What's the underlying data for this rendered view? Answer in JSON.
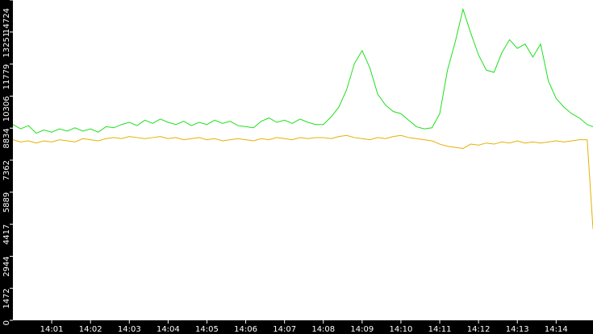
{
  "chart_data": {
    "type": "line",
    "x": [
      840,
      840.2,
      840.4,
      840.6,
      840.8,
      841,
      841.2,
      841.4,
      841.6,
      841.8,
      842,
      842.2,
      842.4,
      842.6,
      842.8,
      843,
      843.2,
      843.4,
      843.6,
      843.8,
      844,
      844.2,
      844.4,
      844.6,
      844.8,
      845,
      845.2,
      845.4,
      845.6,
      845.8,
      846,
      846.2,
      846.4,
      846.6,
      846.8,
      847,
      847.2,
      847.4,
      847.6,
      847.8,
      848,
      848.2,
      848.4,
      848.6,
      848.8,
      849,
      849.2,
      849.4,
      849.6,
      849.8,
      850,
      850.2,
      850.4,
      850.6,
      850.8,
      851,
      851.2,
      851.4,
      851.6,
      851.8,
      852,
      852.2,
      852.4,
      852.6,
      852.8,
      853,
      853.2,
      853.4,
      853.6,
      853.8,
      854,
      854.2,
      854.4,
      854.6,
      854.8,
      854.95
    ],
    "series": [
      {
        "color": "#1ee01e",
        "values": [
          9000,
          8800,
          8950,
          8600,
          8750,
          8650,
          8800,
          8700,
          8850,
          8700,
          8800,
          8650,
          8900,
          8850,
          9000,
          9100,
          8950,
          9200,
          9050,
          9250,
          9100,
          9000,
          9150,
          8950,
          9100,
          9000,
          9200,
          9050,
          9150,
          8950,
          8900,
          8850,
          9150,
          9300,
          9100,
          9200,
          9050,
          9250,
          9100,
          9000,
          9000,
          9350,
          9800,
          10600,
          11800,
          12400,
          11600,
          10400,
          9900,
          9600,
          9500,
          9200,
          8900,
          8800,
          8850,
          9500,
          11500,
          12800,
          14300,
          13200,
          12200,
          11500,
          11400,
          12300,
          12900,
          12500,
          12700,
          12100,
          12700,
          11000,
          10200,
          9800,
          9500,
          9300,
          9000,
          8900
        ]
      },
      {
        "color": "#e6b000",
        "values": [
          8300,
          8200,
          8250,
          8150,
          8250,
          8200,
          8300,
          8250,
          8200,
          8350,
          8300,
          8250,
          8350,
          8400,
          8350,
          8450,
          8400,
          8350,
          8400,
          8450,
          8350,
          8400,
          8300,
          8350,
          8400,
          8300,
          8350,
          8250,
          8300,
          8350,
          8300,
          8250,
          8350,
          8300,
          8400,
          8350,
          8300,
          8400,
          8350,
          8400,
          8400,
          8350,
          8450,
          8500,
          8400,
          8350,
          8300,
          8400,
          8350,
          8450,
          8500,
          8400,
          8350,
          8300,
          8250,
          8100,
          8000,
          7950,
          7900,
          8100,
          8050,
          8150,
          8100,
          8200,
          8150,
          8250,
          8150,
          8200,
          8150,
          8200,
          8250,
          8200,
          8250,
          8300,
          8300,
          4200
        ]
      }
    ],
    "xlim": [
      840,
      854.95
    ],
    "xticks": [
      {
        "value": 841,
        "label": "14:01"
      },
      {
        "value": 842,
        "label": "14:02"
      },
      {
        "value": 843,
        "label": "14:03"
      },
      {
        "value": 844,
        "label": "14:04"
      },
      {
        "value": 845,
        "label": "14:05"
      },
      {
        "value": 846,
        "label": "14:06"
      },
      {
        "value": 847,
        "label": "14:07"
      },
      {
        "value": 848,
        "label": "14:08"
      },
      {
        "value": 849,
        "label": "14:09"
      },
      {
        "value": 850,
        "label": "14:10"
      },
      {
        "value": 851,
        "label": "14:11"
      },
      {
        "value": 852,
        "label": "14:12"
      },
      {
        "value": 853,
        "label": "14:13"
      },
      {
        "value": 854,
        "label": "14:14"
      }
    ],
    "ylim": [
      0,
      14724
    ],
    "yticks": [
      0,
      1472,
      2944,
      4417,
      5889,
      7362,
      8834,
      10306,
      11779,
      13251,
      14724
    ]
  }
}
